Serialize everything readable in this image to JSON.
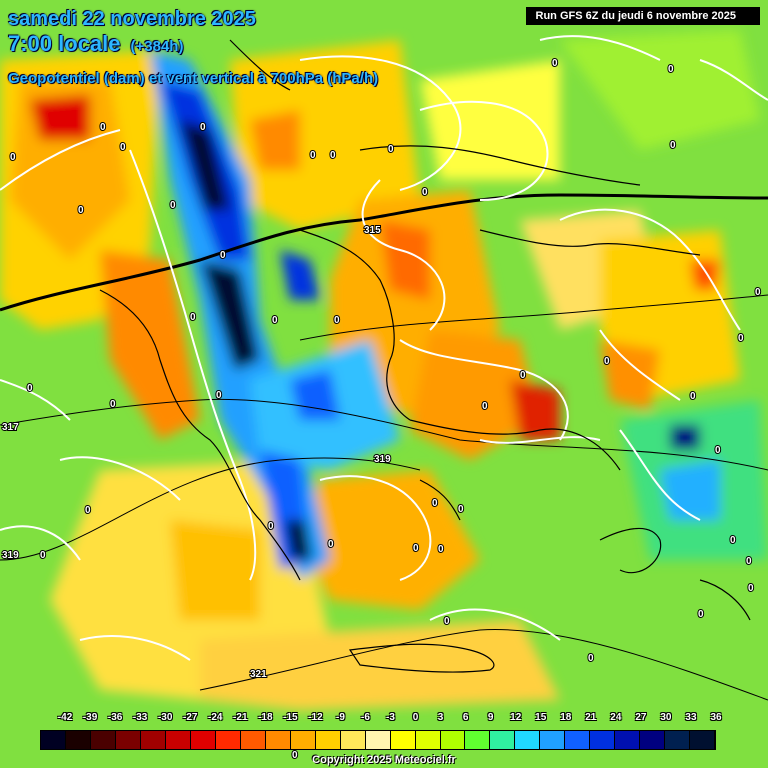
{
  "header": {
    "date_line": "samedi 22 novembre 2025",
    "local_time": "7:00 locale",
    "forecast_offset": "(+384h)",
    "parameter": "Geopotentiel (dam) et vent vertical à 700hPa (hPa/h)",
    "run_info": "Run GFS 6Z du jeudi 6 novembre 2025"
  },
  "legend": {
    "ticks": [
      "-42",
      "-39",
      "-36",
      "-33",
      "-30",
      "-27",
      "-24",
      "-21",
      "-18",
      "-15",
      "-12",
      "-9",
      "-6",
      "-3",
      "0",
      "3",
      "6",
      "9",
      "12",
      "15",
      "18",
      "21",
      "24",
      "27",
      "30",
      "33",
      "36"
    ],
    "colors": [
      "#000022",
      "#1a0000",
      "#4a0000",
      "#7a0000",
      "#a00000",
      "#c80000",
      "#e00000",
      "#ff2a00",
      "#ff5a00",
      "#ff8a00",
      "#ffae00",
      "#ffd000",
      "#ffe85a",
      "#fff6b0",
      "#ffff00",
      "#e0ff00",
      "#b0ff00",
      "#60ff30",
      "#30f0a0",
      "#20d8ff",
      "#20a0ff",
      "#1060ff",
      "#0030e0",
      "#0010b0",
      "#000080",
      "#002050",
      "#001030"
    ]
  },
  "map": {
    "zero_labels": [
      "0",
      "0",
      "0",
      "0",
      "0",
      "0",
      "0",
      "0",
      "0",
      "0",
      "0",
      "0",
      "0",
      "0",
      "0",
      "0",
      "0",
      "0",
      "0",
      "0",
      "0",
      "0",
      "0",
      "0",
      "0",
      "0",
      "0",
      "0",
      "0",
      "0",
      "0",
      "0",
      "0",
      "0",
      "0",
      "0",
      "0",
      "0",
      "0",
      "0",
      "0",
      "0"
    ],
    "geopotential_labels": [
      "315",
      "319",
      "319",
      "317",
      "321"
    ]
  },
  "footer": {
    "copyright": "Copyright 2025 Meteociel.fr"
  }
}
